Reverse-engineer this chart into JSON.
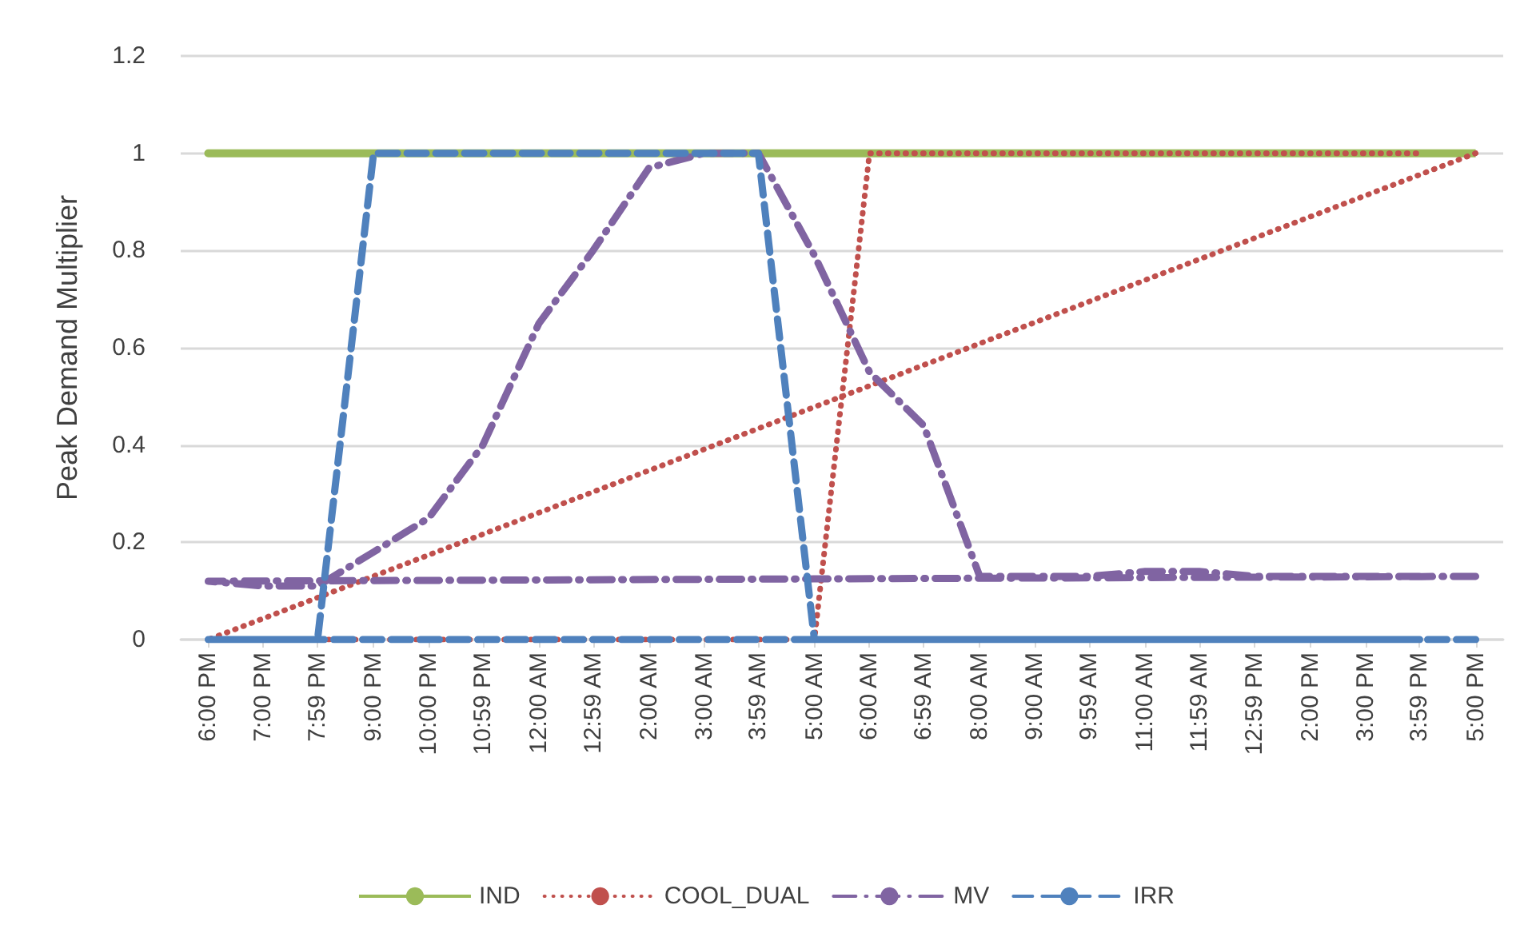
{
  "chart_data": {
    "type": "line",
    "ylabel": "Peak Demand Multiplier",
    "xlim": [
      "2000-01-01T17:30",
      "2000-01-02T17:30"
    ],
    "xticks": [
      {
        "value": "2000-01-01T18:00",
        "label": "6:00 PM"
      },
      {
        "value": "2000-01-01T19:00",
        "label": "7:00 PM"
      },
      {
        "value": "2000-01-01T19:59",
        "label": "7:59 PM"
      },
      {
        "value": "2000-01-01T21:00",
        "label": "9:00 PM"
      },
      {
        "value": "2000-01-01T22:00",
        "label": "10:00 PM"
      },
      {
        "value": "2000-01-01T22:59",
        "label": "10:59 PM"
      },
      {
        "value": "2000-01-02T00:00",
        "label": "12:00 AM"
      },
      {
        "value": "2000-01-02T00:59",
        "label": "12:59 AM"
      },
      {
        "value": "2000-01-02T02:00",
        "label": "2:00 AM"
      },
      {
        "value": "2000-01-02T03:00",
        "label": "3:00 AM"
      },
      {
        "value": "2000-01-02T03:59",
        "label": "3:59 AM"
      },
      {
        "value": "2000-01-02T05:00",
        "label": "5:00 AM"
      },
      {
        "value": "2000-01-02T06:00",
        "label": "6:00 AM"
      },
      {
        "value": "2000-01-02T06:59",
        "label": "6:59 AM"
      },
      {
        "value": "2000-01-02T08:00",
        "label": "8:00 AM"
      },
      {
        "value": "2000-01-02T09:00",
        "label": "9:00 AM"
      },
      {
        "value": "2000-01-02T09:59",
        "label": "9:59 AM"
      },
      {
        "value": "2000-01-02T11:00",
        "label": "11:00 AM"
      },
      {
        "value": "2000-01-02T11:59",
        "label": "11:59 AM"
      },
      {
        "value": "2000-01-02T12:59",
        "label": "12:59 PM"
      },
      {
        "value": "2000-01-02T14:00",
        "label": "2:00 PM"
      },
      {
        "value": "2000-01-02T15:00",
        "label": "3:00 PM"
      },
      {
        "value": "2000-01-02T15:59",
        "label": "3:59 PM"
      },
      {
        "value": "2000-01-02T17:00",
        "label": "5:00 PM"
      }
    ],
    "ylim": [
      0,
      1.2
    ],
    "yticks": [
      0,
      0.2,
      0.4,
      0.6,
      0.8,
      1,
      1.2
    ],
    "grid": "y",
    "legend": "bottom",
    "marker": "none",
    "x": [
      "2000-01-02T17:00",
      "2000-01-01T18:00",
      "2000-01-01T19:00",
      "2000-01-01T19:59",
      "2000-01-01T21:00",
      "2000-01-01T22:00",
      "2000-01-01T22:59",
      "2000-01-02T00:00",
      "2000-01-02T00:59",
      "2000-01-02T02:00",
      "2000-01-02T03:00",
      "2000-01-02T03:59",
      "2000-01-02T05:00",
      "2000-01-02T06:00",
      "2000-01-02T06:59",
      "2000-01-02T08:00",
      "2000-01-02T09:00",
      "2000-01-02T09:59",
      "2000-01-02T11:00",
      "2000-01-02T11:59",
      "2000-01-02T12:59",
      "2000-01-02T14:00",
      "2000-01-02T15:00",
      "2000-01-02T15:59"
    ],
    "series": [
      {
        "name": "IND",
        "color": "#9bbb59",
        "line_style": "solid",
        "values": [
          1,
          1,
          1,
          1,
          1,
          1,
          1,
          1,
          1,
          1,
          1,
          1,
          1,
          1,
          1,
          1,
          1,
          1,
          1,
          1,
          1,
          1,
          1,
          1
        ]
      },
      {
        "name": "COOL_DUAL",
        "color": "#c0504d",
        "line_style": "dotted",
        "values": [
          1,
          0,
          0,
          0,
          0,
          0,
          0,
          0,
          0,
          0,
          0,
          0,
          0,
          1,
          1,
          1,
          1,
          1,
          1,
          1,
          1,
          1,
          1,
          1
        ]
      },
      {
        "name": "MV",
        "color": "#8064a2",
        "line_style": "dashdot",
        "values": [
          0.13,
          0.12,
          0.11,
          0.11,
          0.18,
          0.25,
          0.4,
          0.65,
          0.8,
          0.97,
          1,
          1,
          0.79,
          0.55,
          0.44,
          0.13,
          0.13,
          0.13,
          0.14,
          0.14,
          0.13,
          0.13,
          0.13,
          0.13
        ]
      },
      {
        "name": "IRR",
        "color": "#4f81bd",
        "line_style": "dashed",
        "values": [
          0,
          0,
          0,
          0,
          1,
          1,
          1,
          1,
          1,
          1,
          1,
          1,
          0,
          0,
          0,
          0,
          0,
          0,
          0,
          0,
          0,
          0,
          0,
          0
        ]
      }
    ]
  }
}
